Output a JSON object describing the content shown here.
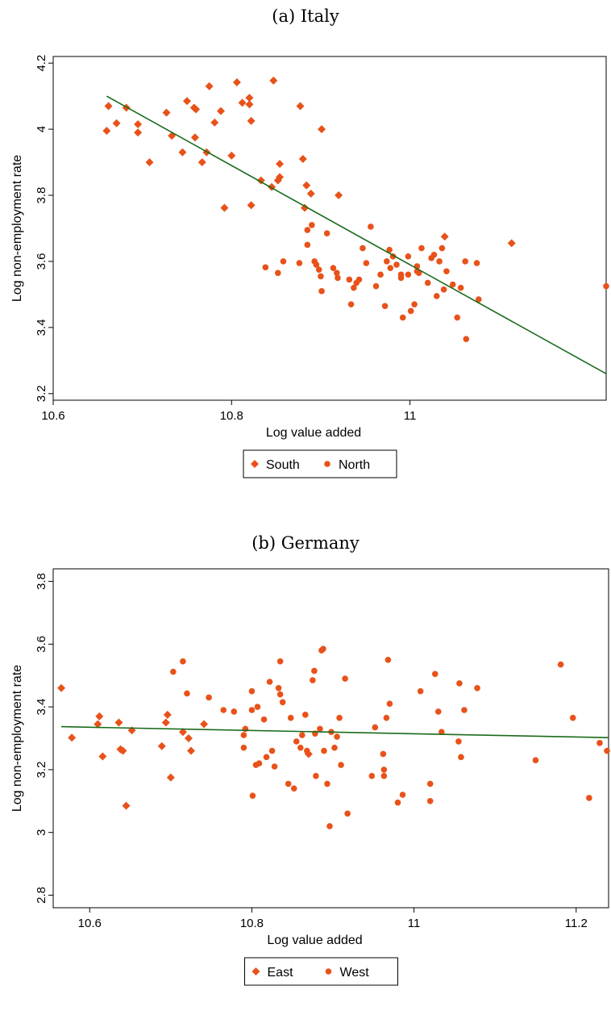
{
  "chart_data": [
    {
      "type": "scatter",
      "title": "(a) Italy",
      "xlabel": "Log value added",
      "ylabel": "Log non-employment rate",
      "xlim": [
        10.6,
        11.22
      ],
      "ylim": [
        3.18,
        4.22
      ],
      "xticks": [
        10.6,
        10.8,
        11
      ],
      "xtick_labels": [
        "10.6",
        "10.8",
        "11"
      ],
      "yticks": [
        3.2,
        3.4,
        3.6,
        3.8,
        4,
        4.2
      ],
      "ytick_labels": [
        "3.2",
        "3.4",
        "3.6",
        "3.8",
        "4",
        "4.2"
      ],
      "grid": false,
      "legend_position": "bottom",
      "colors": {
        "points": "#e8521a",
        "fit_line": "#1a6b1a",
        "axis": "#000000"
      },
      "fit_line": {
        "x": [
          10.66,
          11.22
        ],
        "y": [
          4.1,
          3.26
        ]
      },
      "series": [
        {
          "name": "South",
          "marker": "diamond",
          "points": [
            [
              10.66,
              3.995
            ],
            [
              10.662,
              4.07
            ],
            [
              10.671,
              4.018
            ],
            [
              10.682,
              4.065
            ],
            [
              10.695,
              4.015
            ],
            [
              10.695,
              3.99
            ],
            [
              10.708,
              3.9
            ],
            [
              10.727,
              4.05
            ],
            [
              10.733,
              3.98
            ],
            [
              10.745,
              3.93
            ],
            [
              10.75,
              4.085
            ],
            [
              10.758,
              4.065
            ],
            [
              10.759,
              3.975
            ],
            [
              10.76,
              4.06
            ],
            [
              10.767,
              3.9
            ],
            [
              10.772,
              3.93
            ],
            [
              10.775,
              4.13
            ],
            [
              10.781,
              4.02
            ],
            [
              10.788,
              4.055
            ],
            [
              10.792,
              3.762
            ],
            [
              10.8,
              3.92
            ],
            [
              10.806,
              4.142
            ],
            [
              10.812,
              4.08
            ],
            [
              10.82,
              4.075
            ],
            [
              10.82,
              4.095
            ],
            [
              10.822,
              4.025
            ],
            [
              10.822,
              3.77
            ],
            [
              10.833,
              3.845
            ],
            [
              10.845,
              3.825
            ],
            [
              10.847,
              4.147
            ],
            [
              10.852,
              3.845
            ],
            [
              10.854,
              3.895
            ],
            [
              10.854,
              3.855
            ],
            [
              10.877,
              4.07
            ],
            [
              10.88,
              3.91
            ],
            [
              10.884,
              3.83
            ],
            [
              10.889,
              3.805
            ],
            [
              10.901,
              4.0
            ],
            [
              10.92,
              3.8
            ],
            [
              10.882,
              3.762
            ],
            [
              11.114,
              3.655
            ],
            [
              11.039,
              3.675
            ]
          ]
        },
        {
          "name": "North",
          "marker": "circle",
          "points": [
            [
              10.838,
              3.582
            ],
            [
              10.852,
              3.565
            ],
            [
              10.858,
              3.6
            ],
            [
              10.876,
              3.595
            ],
            [
              10.885,
              3.695
            ],
            [
              10.885,
              3.65
            ],
            [
              10.89,
              3.71
            ],
            [
              10.893,
              3.6
            ],
            [
              10.895,
              3.59
            ],
            [
              10.898,
              3.575
            ],
            [
              10.9,
              3.555
            ],
            [
              10.901,
              3.51
            ],
            [
              10.907,
              3.685
            ],
            [
              10.914,
              3.58
            ],
            [
              10.918,
              3.565
            ],
            [
              10.919,
              3.55
            ],
            [
              10.932,
              3.545
            ],
            [
              10.934,
              3.47
            ],
            [
              10.937,
              3.52
            ],
            [
              10.94,
              3.535
            ],
            [
              10.943,
              3.545
            ],
            [
              10.947,
              3.64
            ],
            [
              10.951,
              3.595
            ],
            [
              10.956,
              3.705
            ],
            [
              10.962,
              3.525
            ],
            [
              10.967,
              3.56
            ],
            [
              10.972,
              3.465
            ],
            [
              10.974,
              3.6
            ],
            [
              10.977,
              3.635
            ],
            [
              10.978,
              3.58
            ],
            [
              10.981,
              3.615
            ],
            [
              10.985,
              3.59
            ],
            [
              10.99,
              3.55
            ],
            [
              10.99,
              3.56
            ],
            [
              10.992,
              3.43
            ],
            [
              10.998,
              3.615
            ],
            [
              10.998,
              3.56
            ],
            [
              11.001,
              3.45
            ],
            [
              11.005,
              3.47
            ],
            [
              11.008,
              3.585
            ],
            [
              11.008,
              3.57
            ],
            [
              11.01,
              3.565
            ],
            [
              11.013,
              3.64
            ],
            [
              11.02,
              3.535
            ],
            [
              11.024,
              3.61
            ],
            [
              11.027,
              3.62
            ],
            [
              11.03,
              3.495
            ],
            [
              11.033,
              3.6
            ],
            [
              11.036,
              3.64
            ],
            [
              11.038,
              3.515
            ],
            [
              11.041,
              3.57
            ],
            [
              11.048,
              3.53
            ],
            [
              11.053,
              3.43
            ],
            [
              11.057,
              3.52
            ],
            [
              11.063,
              3.365
            ],
            [
              11.062,
              3.6
            ],
            [
              11.075,
              3.595
            ],
            [
              11.077,
              3.485
            ],
            [
              11.22,
              3.525
            ]
          ]
        }
      ]
    },
    {
      "type": "scatter",
      "title": "(b) Germany",
      "xlabel": "Log value added",
      "ylabel": "Log non-employment rate",
      "xlim": [
        10.555,
        11.24
      ],
      "ylim": [
        2.76,
        3.84
      ],
      "xticks": [
        10.6,
        10.8,
        11,
        11.2
      ],
      "xtick_labels": [
        "10.6",
        "10.8",
        "11",
        "11.2"
      ],
      "yticks": [
        2.8,
        3,
        3.2,
        3.4,
        3.6,
        3.8
      ],
      "ytick_labels": [
        "2.8",
        "3",
        "3.2",
        "3.4",
        "3.6",
        "3.8"
      ],
      "grid": false,
      "legend_position": "bottom",
      "colors": {
        "points": "#e8521a",
        "fit_line": "#1a6b1a",
        "axis": "#000000"
      },
      "fit_line": {
        "x": [
          10.565,
          11.24
        ],
        "y": [
          3.337,
          3.302
        ]
      },
      "series": [
        {
          "name": "East",
          "marker": "diamond",
          "points": [
            [
              10.565,
              3.46
            ],
            [
              10.578,
              3.302
            ],
            [
              10.61,
              3.345
            ],
            [
              10.612,
              3.37
            ],
            [
              10.616,
              3.242
            ],
            [
              10.636,
              3.35
            ],
            [
              10.638,
              3.265
            ],
            [
              10.641,
              3.26
            ],
            [
              10.645,
              3.085
            ],
            [
              10.652,
              3.325
            ],
            [
              10.689,
              3.275
            ],
            [
              10.694,
              3.35
            ],
            [
              10.696,
              3.375
            ],
            [
              10.7,
              3.175
            ],
            [
              10.715,
              3.32
            ],
            [
              10.722,
              3.3
            ],
            [
              10.725,
              3.26
            ],
            [
              10.741,
              3.345
            ],
            [
              10.87,
              3.25
            ]
          ]
        },
        {
          "name": "West",
          "marker": "circle",
          "points": [
            [
              10.703,
              3.512
            ],
            [
              10.715,
              3.545
            ],
            [
              10.72,
              3.443
            ],
            [
              10.747,
              3.43
            ],
            [
              10.765,
              3.39
            ],
            [
              10.778,
              3.385
            ],
            [
              10.79,
              3.27
            ],
            [
              10.79,
              3.31
            ],
            [
              10.792,
              3.33
            ],
            [
              10.8,
              3.39
            ],
            [
              10.8,
              3.45
            ],
            [
              10.805,
              3.215
            ],
            [
              10.807,
              3.4
            ],
            [
              10.809,
              3.22
            ],
            [
              10.815,
              3.36
            ],
            [
              10.818,
              3.24
            ],
            [
              10.822,
              3.48
            ],
            [
              10.825,
              3.26
            ],
            [
              10.828,
              3.21
            ],
            [
              10.833,
              3.46
            ],
            [
              10.835,
              3.545
            ],
            [
              10.835,
              3.44
            ],
            [
              10.838,
              3.415
            ],
            [
              10.845,
              3.155
            ],
            [
              10.848,
              3.365
            ],
            [
              10.852,
              3.14
            ],
            [
              10.855,
              3.29
            ],
            [
              10.86,
              3.27
            ],
            [
              10.862,
              3.31
            ],
            [
              10.866,
              3.375
            ],
            [
              10.868,
              3.26
            ],
            [
              10.875,
              3.485
            ],
            [
              10.877,
              3.515
            ],
            [
              10.878,
              3.315
            ],
            [
              10.879,
              3.18
            ],
            [
              10.884,
              3.33
            ],
            [
              10.886,
              3.58
            ],
            [
              10.888,
              3.585
            ],
            [
              10.889,
              3.26
            ],
            [
              10.893,
              3.155
            ],
            [
              10.896,
              3.02
            ],
            [
              10.898,
              3.32
            ],
            [
              10.902,
              3.27
            ],
            [
              10.905,
              3.305
            ],
            [
              10.908,
              3.365
            ],
            [
              10.91,
              3.215
            ],
            [
              10.915,
              3.49
            ],
            [
              10.918,
              3.06
            ],
            [
              10.948,
              3.18
            ],
            [
              10.952,
              3.335
            ],
            [
              10.962,
              3.25
            ],
            [
              10.963,
              3.2
            ],
            [
              10.963,
              3.18
            ],
            [
              10.966,
              3.365
            ],
            [
              10.968,
              3.55
            ],
            [
              10.97,
              3.41
            ],
            [
              10.98,
              3.095
            ],
            [
              10.986,
              3.12
            ],
            [
              11.008,
              3.45
            ],
            [
              11.02,
              3.155
            ],
            [
              11.02,
              3.1
            ],
            [
              11.026,
              3.505
            ],
            [
              11.03,
              3.385
            ],
            [
              11.034,
              3.32
            ],
            [
              11.055,
              3.29
            ],
            [
              11.056,
              3.475
            ],
            [
              11.058,
              3.24
            ],
            [
              11.062,
              3.39
            ],
            [
              11.078,
              3.46
            ],
            [
              11.15,
              3.23
            ],
            [
              11.181,
              3.535
            ],
            [
              11.196,
              3.365
            ],
            [
              11.216,
              3.11
            ],
            [
              11.229,
              3.285
            ],
            [
              11.238,
              3.26
            ],
            [
              10.801,
              3.117
            ]
          ]
        }
      ]
    }
  ]
}
